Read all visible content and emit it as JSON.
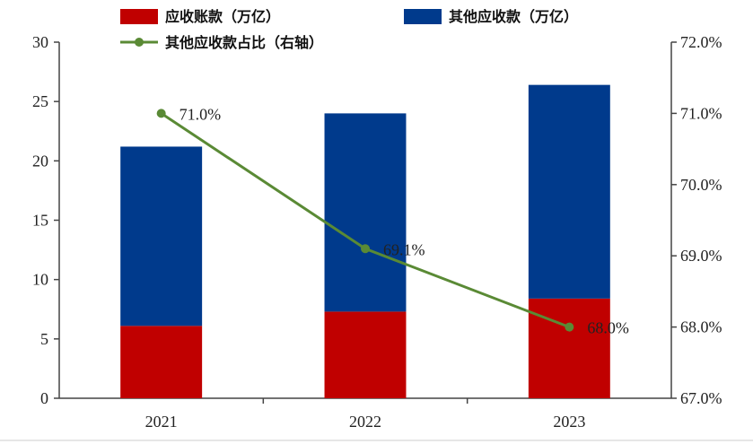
{
  "chart_data": {
    "type": "bar",
    "categories": [
      "2021",
      "2022",
      "2023"
    ],
    "series": [
      {
        "name": "应收账款（万亿）",
        "kind": "bar",
        "axis": "left",
        "color": "#c00000",
        "values": [
          6.1,
          7.3,
          8.4
        ]
      },
      {
        "name": "其他应收款（万亿）",
        "kind": "bar",
        "axis": "left",
        "color": "#003a8c",
        "values": [
          15.1,
          16.7,
          18.0
        ]
      },
      {
        "name": "其他应收款占比（右轴）",
        "kind": "line",
        "axis": "right",
        "color": "#5a8a35",
        "values": [
          71.0,
          69.1,
          68.0
        ],
        "labels": [
          "71.0%",
          "69.1%",
          "68.0%"
        ]
      }
    ],
    "stacked": true,
    "left_axis": {
      "ylim": [
        0,
        30
      ],
      "ticks": [
        "0",
        "5",
        "10",
        "15",
        "20",
        "25",
        "30"
      ]
    },
    "right_axis": {
      "ylim": [
        67.0,
        72.0
      ],
      "ticks": [
        "67.0%",
        "68.0%",
        "69.0%",
        "70.0%",
        "71.0%",
        "72.0%"
      ]
    },
    "grid": false,
    "legend_position": "top"
  }
}
